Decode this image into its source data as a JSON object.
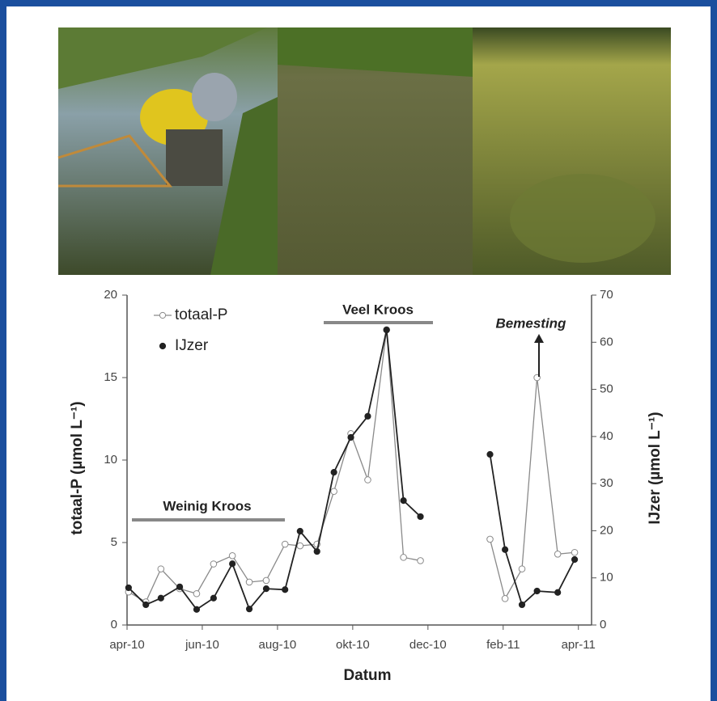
{
  "chart_data": {
    "type": "line",
    "xlabel": "Datum",
    "ylabel": "totaal-P (µmol L⁻¹)",
    "y2label": "IJzer (µmol L⁻¹)",
    "xlim": [
      0,
      12.35
    ],
    "xticks": [
      {
        "value": 0,
        "label": "apr-10"
      },
      {
        "value": 2,
        "label": "jun-10"
      },
      {
        "value": 4,
        "label": "aug-10"
      },
      {
        "value": 6,
        "label": "okt-10"
      },
      {
        "value": 8,
        "label": "dec-10"
      },
      {
        "value": 10,
        "label": "feb-11"
      },
      {
        "value": 12,
        "label": "apr-11"
      }
    ],
    "ylim": [
      0,
      20
    ],
    "yticks": [
      0,
      5,
      10,
      15,
      20
    ],
    "y2lim": [
      0,
      70
    ],
    "y2ticks": [
      0,
      10,
      20,
      30,
      40,
      50,
      60,
      70
    ],
    "legend": "upper left",
    "x": [
      0.04,
      0.5,
      0.9,
      1.4,
      1.85,
      2.3,
      2.8,
      3.25,
      3.7,
      4.2,
      4.6,
      5.05,
      5.5,
      5.95,
      6.4,
      6.9,
      7.35,
      7.8,
      9.65,
      10.05,
      10.5,
      10.9,
      11.45,
      11.9
    ],
    "series": [
      {
        "name": "totaal-P",
        "color": "#8a8a8a",
        "marker": "open",
        "values": [
          2.0,
          1.4,
          3.4,
          2.2,
          1.9,
          3.7,
          4.2,
          2.6,
          2.7,
          4.9,
          4.8,
          4.9,
          8.1,
          11.6,
          8.8,
          17.9,
          4.1,
          3.9,
          5.2,
          1.6,
          3.4,
          15.0,
          4.3,
          4.4
        ]
      },
      {
        "name": "IJzer",
        "color": "#222222",
        "marker": "filled",
        "axis": "y2",
        "values": [
          7.9,
          4.3,
          5.7,
          8.1,
          3.3,
          5.7,
          13.0,
          3.4,
          7.7,
          7.5,
          19.9,
          15.6,
          32.4,
          39.8,
          44.3,
          62.6,
          26.4,
          23.0,
          36.2,
          16.0,
          4.3,
          7.2,
          6.9,
          13.9
        ]
      }
    ],
    "annotations": [
      "Weinig Kroos",
      "Veel Kroos",
      "Bemesting"
    ]
  }
}
